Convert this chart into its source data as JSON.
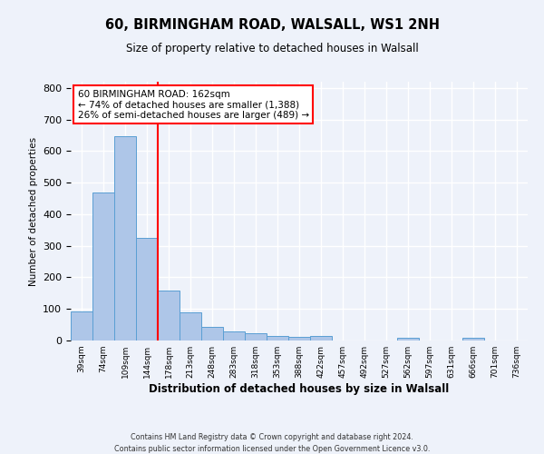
{
  "title": "60, BIRMINGHAM ROAD, WALSALL, WS1 2NH",
  "subtitle": "Size of property relative to detached houses in Walsall",
  "xlabel": "Distribution of detached houses by size in Walsall",
  "ylabel": "Number of detached properties",
  "bar_labels": [
    "39sqm",
    "74sqm",
    "109sqm",
    "144sqm",
    "178sqm",
    "213sqm",
    "248sqm",
    "283sqm",
    "318sqm",
    "353sqm",
    "388sqm",
    "422sqm",
    "457sqm",
    "492sqm",
    "527sqm",
    "562sqm",
    "597sqm",
    "631sqm",
    "666sqm",
    "701sqm",
    "736sqm"
  ],
  "bar_values": [
    93,
    470,
    648,
    325,
    158,
    90,
    42,
    28,
    22,
    15,
    12,
    13,
    0,
    0,
    0,
    10,
    0,
    0,
    8,
    0,
    0
  ],
  "bar_color": "#aec6e8",
  "bar_edge_color": "#5a9fd4",
  "vline_x": 4.0,
  "vline_color": "red",
  "annotation_line1": "60 BIRMINGHAM ROAD: 162sqm",
  "annotation_line2": "← 74% of detached houses are smaller (1,388)",
  "annotation_line3": "26% of semi-detached houses are larger (489) →",
  "annotation_box_color": "white",
  "annotation_box_edge_color": "red",
  "ylim": [
    0,
    820
  ],
  "yticks": [
    0,
    100,
    200,
    300,
    400,
    500,
    600,
    700,
    800
  ],
  "bg_color": "#eef2fa",
  "grid_color": "white",
  "footer_line1": "Contains HM Land Registry data © Crown copyright and database right 2024.",
  "footer_line2": "Contains public sector information licensed under the Open Government Licence v3.0."
}
